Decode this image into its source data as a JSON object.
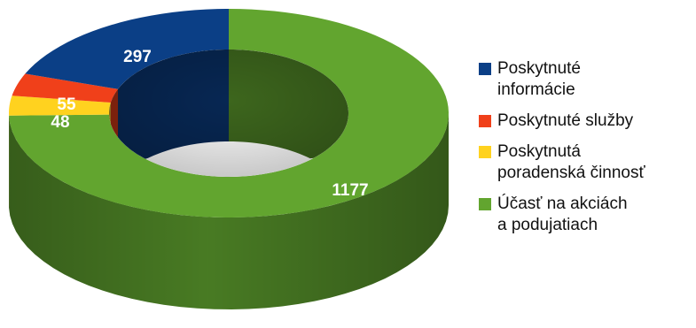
{
  "chart_data": {
    "type": "pie",
    "style": "3d-donut",
    "categories": [
      "Poskytnuté\ninformácie",
      "Poskytnuté služby",
      "Poskytnutá\nporadenská činnosť",
      "Účasť na akciách\na podujatiach"
    ],
    "values": [
      297,
      55,
      48,
      1177
    ],
    "colors": [
      "#0b3f86",
      "#f0401a",
      "#ffd21f",
      "#62a52f"
    ],
    "title": "",
    "legend_position": "right"
  }
}
